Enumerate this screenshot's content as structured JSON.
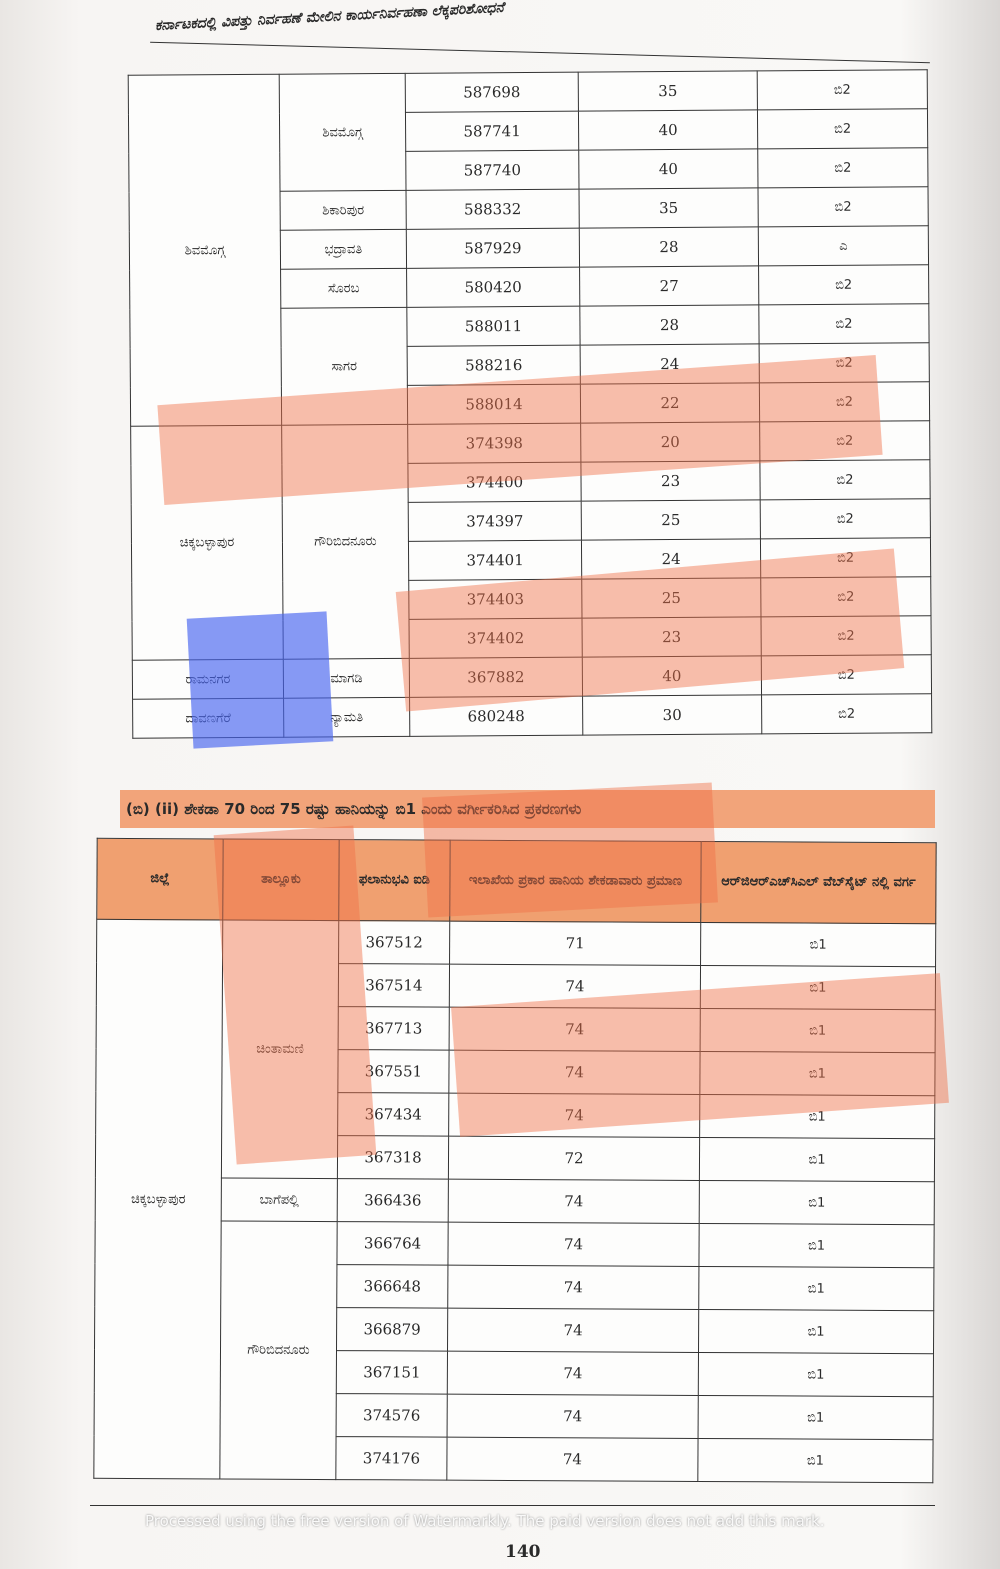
{
  "running_head": "ಕರ್ನಾಟಕದಲ್ಲಿ ವಿಪತ್ತು ನಿರ್ವಹಣೆ ಮೇಲಿನ ಕಾರ್ಯನಿರ್ವಹಣಾ ಲೆಕ್ಕಪರಿಶೋಧನೆ",
  "upper_table": [
    {
      "district": "ಶಿವಮೊಗ್ಗ",
      "taluks": [
        {
          "name": "ಶಿವಮೊಗ್ಗ",
          "rows": [
            [
              "587698",
              "35",
              "ಬಿ2"
            ],
            [
              "587741",
              "40",
              "ಬಿ2"
            ],
            [
              "587740",
              "40",
              "ಬಿ2"
            ]
          ]
        },
        {
          "name": "ಶಿಕಾರಿಪುರ",
          "rows": [
            [
              "588332",
              "35",
              "ಬಿ2"
            ]
          ]
        },
        {
          "name": "ಭದ್ರಾವತಿ",
          "rows": [
            [
              "587929",
              "28",
              "ಎ"
            ]
          ]
        },
        {
          "name": "ಸೊರಬ",
          "rows": [
            [
              "580420",
              "27",
              "ಬಿ2"
            ]
          ]
        },
        {
          "name": "ಸಾಗರ",
          "rows": [
            [
              "588011",
              "28",
              "ಬಿ2"
            ],
            [
              "588216",
              "24",
              "ಬಿ2"
            ],
            [
              "588014",
              "22",
              "ಬಿ2"
            ]
          ]
        }
      ]
    },
    {
      "district": "ಚಿಕ್ಕಬಳ್ಳಾಪುರ",
      "taluks": [
        {
          "name": "ಗೌರಿಬಿದನೂರು",
          "rows": [
            [
              "374398",
              "20",
              "ಬಿ2"
            ],
            [
              "374400",
              "23",
              "ಬಿ2"
            ],
            [
              "374397",
              "25",
              "ಬಿ2"
            ],
            [
              "374401",
              "24",
              "ಬಿ2"
            ],
            [
              "374403",
              "25",
              "ಬಿ2"
            ],
            [
              "374402",
              "23",
              "ಬಿ2"
            ]
          ]
        }
      ]
    },
    {
      "district": "ರಾಮನಗರ",
      "taluks": [
        {
          "name": "ಮಾಗಡಿ",
          "rows": [
            [
              "367882",
              "40",
              "ಬಿ2"
            ]
          ]
        }
      ]
    },
    {
      "district": "ದಾವಣಗೆರೆ",
      "taluks": [
        {
          "name": "ನ್ಯಾಮತಿ",
          "rows": [
            [
              "680248",
              "30",
              "ಬಿ2"
            ]
          ]
        }
      ]
    }
  ],
  "section_heading": "(ಬಿ) (ii) ಶೇಕಡಾ 70 ರಿಂದ 75 ರಷ್ಟು ಹಾನಿಯನ್ನು ಬಿ1 ಎಂದು ವರ್ಗೀಕರಿಸಿದ ಪ್ರಕರಣಗಳು",
  "lower_headers": [
    "ಜಿಲ್ಲೆ",
    "ತಾಲ್ಲೂಕು",
    "ಫಲಾನುಭವಿ ಐಡಿ",
    "ಇಲಾಖೆಯ ಪ್ರಕಾರ ಹಾನಿಯ ಶೇಕಡಾವಾರು ಪ್ರಮಾಣ",
    "ಆರ್‌ಜಿಆರ್‌ಎಚ್‌ಸಿಎಲ್ ವೆಬ್‌ಸೈಟ್ ನಲ್ಲಿ ವರ್ಗ"
  ],
  "lower_table": [
    {
      "district": "ಚಿಕ್ಕಬಳ್ಳಾಪುರ",
      "taluks": [
        {
          "name": "ಚಿಂತಾಮಣಿ",
          "rows": [
            [
              "367512",
              "71",
              "ಬಿ1"
            ],
            [
              "367514",
              "74",
              "ಬಿ1"
            ],
            [
              "367713",
              "74",
              "ಬಿ1"
            ],
            [
              "367551",
              "74",
              "ಬಿ1"
            ],
            [
              "367434",
              "74",
              "ಬಿ1"
            ],
            [
              "367318",
              "72",
              "ಬಿ1"
            ]
          ]
        },
        {
          "name": "ಬಾಗೆಪಲ್ಲಿ",
          "rows": [
            [
              "366436",
              "74",
              "ಬಿ1"
            ]
          ]
        },
        {
          "name": "ಗೌರಿಬಿದನೂರು",
          "rows": [
            [
              "366764",
              "74",
              "ಬಿ1"
            ],
            [
              "366648",
              "74",
              "ಬಿ1"
            ],
            [
              "366879",
              "74",
              "ಬಿ1"
            ],
            [
              "367151",
              "74",
              "ಬಿ1"
            ],
            [
              "374576",
              "74",
              "ಬಿ1"
            ],
            [
              "374176",
              "74",
              "ಬಿ1"
            ]
          ]
        }
      ]
    }
  ],
  "page_number": "140",
  "watermark": "Processed using the free version of Watermarkly. The paid version does not add this mark.",
  "highlight_color": "#f06e46",
  "highlight_color_blue": "#4664f0"
}
